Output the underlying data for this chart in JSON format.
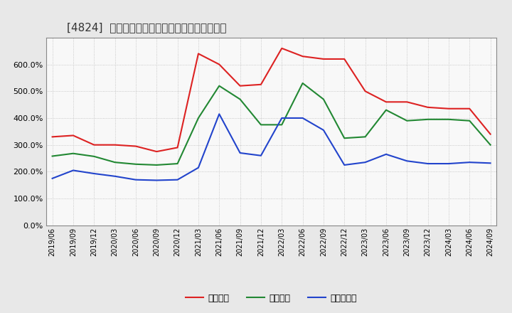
{
  "title": "[4824]  流動比率、当座比率、現頲金比率の推移",
  "x_labels": [
    "2019/06",
    "2019/09",
    "2019/12",
    "2020/03",
    "2020/06",
    "2020/09",
    "2020/12",
    "2021/03",
    "2021/06",
    "2021/09",
    "2021/12",
    "2022/03",
    "2022/06",
    "2022/09",
    "2022/12",
    "2023/03",
    "2023/06",
    "2023/09",
    "2023/12",
    "2024/03",
    "2024/06",
    "2024/09"
  ],
  "ryudo": [
    330,
    335,
    300,
    300,
    295,
    275,
    290,
    640,
    600,
    520,
    525,
    660,
    630,
    620,
    620,
    500,
    460,
    460,
    440,
    435,
    435,
    340
  ],
  "toza": [
    258,
    268,
    257,
    235,
    228,
    225,
    230,
    400,
    520,
    470,
    375,
    375,
    530,
    470,
    325,
    330,
    430,
    390,
    395,
    395,
    390,
    300
  ],
  "genyo": [
    175,
    205,
    193,
    183,
    170,
    168,
    170,
    215,
    415,
    270,
    260,
    400,
    400,
    355,
    225,
    235,
    265,
    240,
    230,
    230,
    235,
    232
  ],
  "ryudo_color": "#dd2222",
  "toza_color": "#228833",
  "genyo_color": "#2244cc",
  "ylim": [
    0,
    700
  ],
  "yticks": [
    0,
    100,
    200,
    300,
    400,
    500,
    600
  ],
  "legend_labels": [
    "流動比率",
    "当座比率",
    "現頲金比率"
  ],
  "fig_bg_color": "#e8e8e8",
  "plot_bg_color": "#f8f8f8",
  "grid_color": "#bbbbbb",
  "spine_color": "#888888",
  "title_fontsize": 11,
  "tick_fontsize": 7,
  "legend_fontsize": 9,
  "linewidth": 1.5
}
